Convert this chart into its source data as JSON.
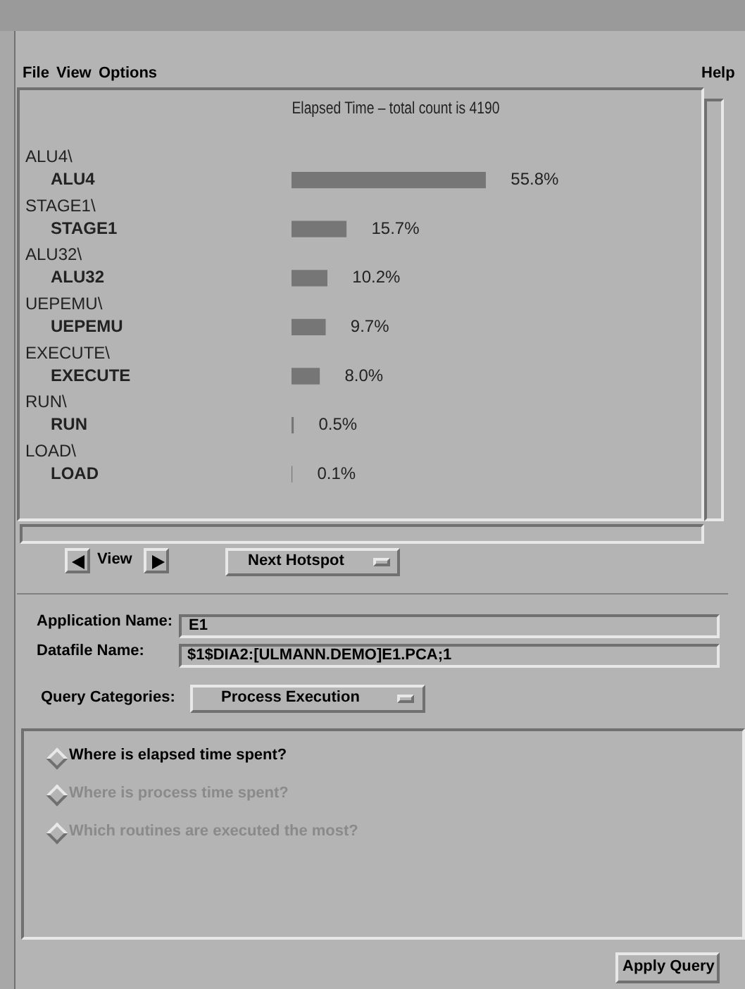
{
  "chart_data": {
    "type": "bar",
    "orientation": "horizontal",
    "title": "Elapsed Time – total count is 4190",
    "categories": [
      "ALU4\\\nALU4",
      "STAGE1\\\nSTAGE1",
      "ALU32\\\nALU32",
      "UEPEMU\\\nUEPEMU",
      "EXECUTE\\\nEXECUTE",
      "RUN\\\nRUN",
      "LOAD\\\nLOAD"
    ],
    "values": [
      55.8,
      15.7,
      10.2,
      9.7,
      8.0,
      0.5,
      0.1
    ],
    "value_labels": [
      "55.8%",
      "15.7%",
      "10.2%",
      "9.7%",
      "8.0%",
      "0.5%",
      "0.1%"
    ],
    "color": "#767676",
    "tick_labels": false,
    "legend": false,
    "annotations": [
      "File",
      "View",
      "Options",
      "Help",
      "View",
      "Next Hotspot",
      "Application Name:",
      "E1",
      "Datafile Name:",
      "$1$DIA2:[ULMANN.DEMO]E1.PCA;1",
      "Query Categories:",
      "Process Execution",
      "Where is elapsed time spent?",
      "Where is process time spent?",
      "Which routines are executed the most?",
      "Apply Query"
    ]
  }
}
